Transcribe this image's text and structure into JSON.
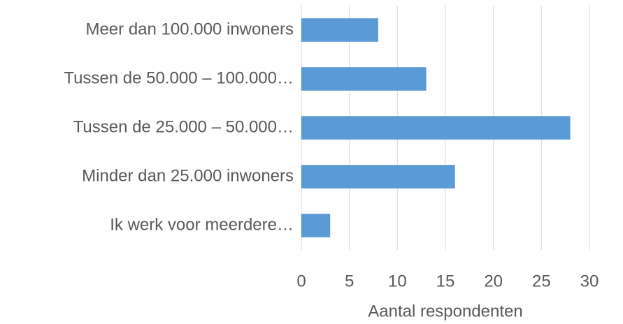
{
  "chart_data": {
    "type": "barh",
    "categories": [
      "Meer dan 100.000 inwoners",
      "Tussen de 50.000 – 100.000…",
      "Tussen de 25.000 – 50.000…",
      "Minder dan 25.000 inwoners",
      "Ik werk voor meerdere…"
    ],
    "values": [
      8,
      13,
      28,
      16,
      3
    ],
    "color": "#5b9bd5",
    "x_label": "Aantal respondenten",
    "xlim": [
      0,
      30
    ],
    "xticks": [
      0,
      5,
      10,
      15,
      20,
      25,
      30
    ],
    "grid": true
  }
}
